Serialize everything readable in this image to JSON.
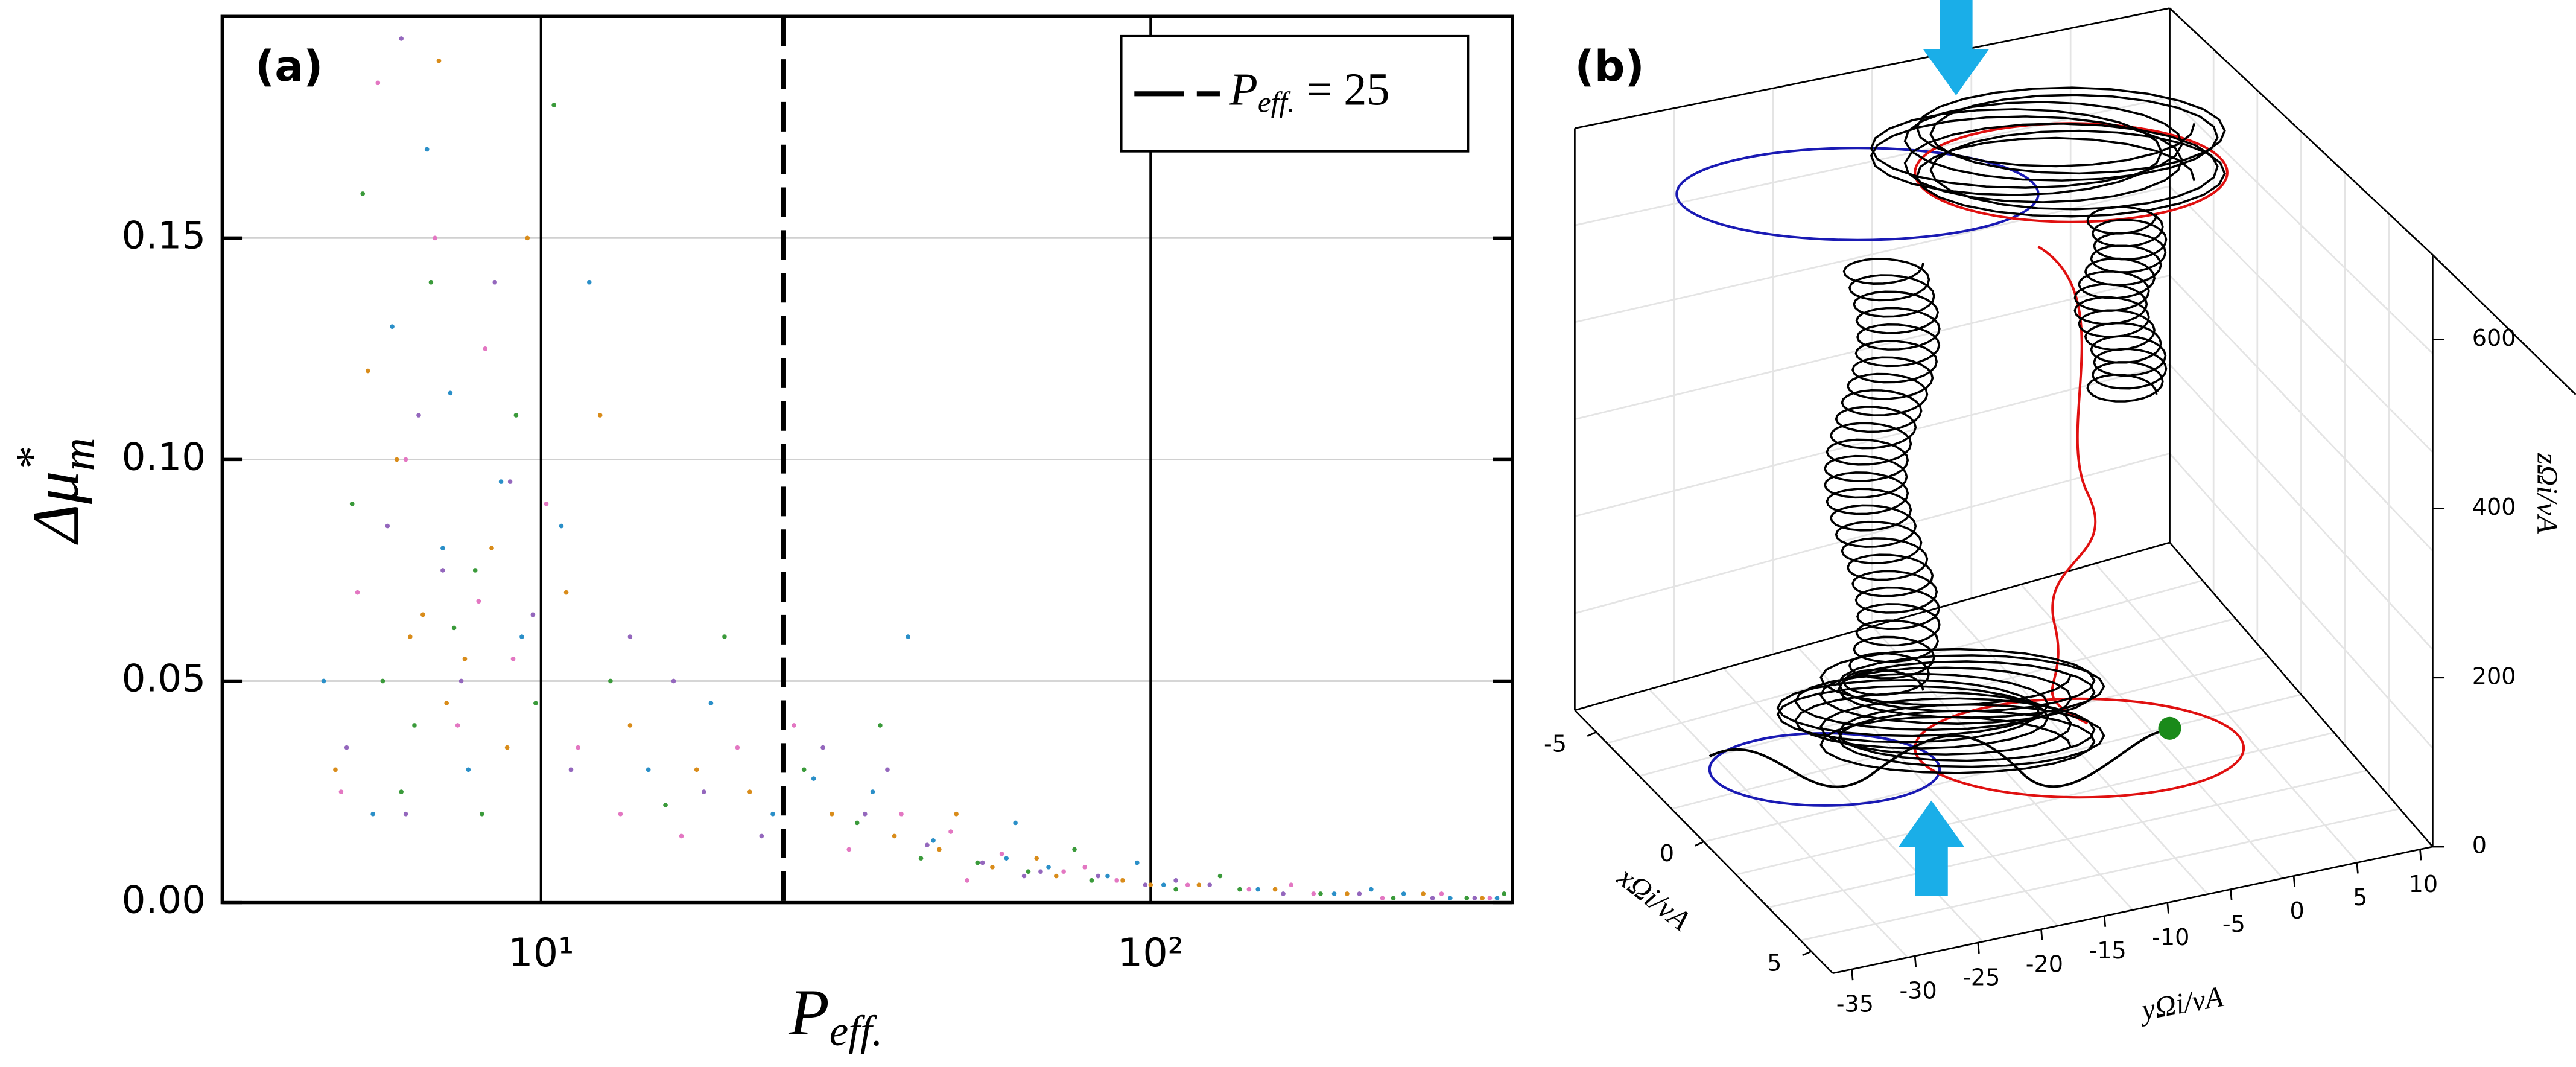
{
  "chart_data": [
    {
      "type": "scatter",
      "panel_label": "(a)",
      "xlabel": {
        "base": "P",
        "sub": "eff."
      },
      "ylabel": {
        "base": "Δμ",
        "sup": "*",
        "sub": "m"
      },
      "xscale": "log",
      "xlim": [
        3,
        392
      ],
      "ylim": [
        0,
        0.2
      ],
      "xticks": [
        {
          "value": 10,
          "label": "10¹"
        },
        {
          "value": 100,
          "label": "10²"
        }
      ],
      "yticks": [
        {
          "value": 0,
          "label": "0.00"
        },
        {
          "value": 0.05,
          "label": "0.05"
        },
        {
          "value": 0.1,
          "label": "0.10"
        },
        {
          "value": 0.15,
          "label": "0.15"
        }
      ],
      "grid": true,
      "legend": "upper right",
      "vline": {
        "x": 25,
        "color": "#000000",
        "legend": {
          "base": "P",
          "sub": "eff.",
          "rest": " = 25"
        }
      },
      "series": [
        {
          "color": "#d98c1a",
          "x": [
            5.2,
            6.1,
            7.0,
            8.3,
            9.5,
            4.6,
            6.8,
            7.5,
            5.8,
            11,
            14,
            18,
            22,
            30,
            38,
            45,
            55,
            70,
            90,
            120,
            160,
            210,
            280,
            350,
            8.8,
            6.4,
            12.5,
            48,
            65,
            100
          ],
          "values": [
            0.12,
            0.06,
            0.045,
            0.08,
            0.15,
            0.03,
            0.19,
            0.055,
            0.1,
            0.07,
            0.04,
            0.03,
            0.025,
            0.02,
            0.015,
            0.012,
            0.008,
            0.006,
            0.005,
            0.004,
            0.003,
            0.002,
            0.002,
            0.001,
            0.035,
            0.065,
            0.11,
            0.02,
            0.01,
            0.004
          ]
        },
        {
          "color": "#3a9a3a",
          "x": [
            4.9,
            5.5,
            6.6,
            7.2,
            8.0,
            9.1,
            10.5,
            5.1,
            6.2,
            7.8,
            13,
            16,
            20,
            27,
            33,
            42,
            52,
            63,
            80,
            110,
            140,
            190,
            250,
            330,
            380,
            9.8,
            5.9,
            36,
            75,
            130
          ],
          "values": [
            0.09,
            0.05,
            0.14,
            0.062,
            0.02,
            0.11,
            0.18,
            0.16,
            0.04,
            0.075,
            0.05,
            0.022,
            0.06,
            0.03,
            0.018,
            0.01,
            0.009,
            0.007,
            0.005,
            0.003,
            0.003,
            0.002,
            0.001,
            0.001,
            0.002,
            0.045,
            0.025,
            0.04,
            0.012,
            0.006
          ]
        },
        {
          "color": "#2a8fc8",
          "x": [
            4.4,
            5.7,
            6.9,
            7.6,
            8.6,
            9.3,
            12,
            5.3,
            6.5,
            15,
            19,
            24,
            28,
            35,
            44,
            58,
            68,
            85,
            105,
            150,
            200,
            260,
            310,
            370,
            7.1,
            10.8,
            40,
            60,
            95,
            230
          ],
          "values": [
            0.05,
            0.13,
            0.08,
            0.03,
            0.095,
            0.06,
            0.14,
            0.02,
            0.17,
            0.03,
            0.045,
            0.02,
            0.028,
            0.025,
            0.014,
            0.01,
            0.008,
            0.006,
            0.004,
            0.003,
            0.002,
            0.002,
            0.001,
            0.001,
            0.115,
            0.085,
            0.06,
            0.018,
            0.009,
            0.003
          ]
        },
        {
          "color": "#e377c2",
          "x": [
            5.0,
            6.0,
            7.3,
            8.1,
            9.0,
            10.2,
            4.7,
            6.7,
            11.5,
            17,
            21,
            26,
            32,
            39,
            47,
            57,
            72,
            88,
            115,
            145,
            185,
            240,
            300,
            360,
            5.4,
            7.9,
            13.5,
            50,
            78,
            170
          ],
          "values": [
            0.07,
            0.1,
            0.04,
            0.125,
            0.055,
            0.09,
            0.025,
            0.15,
            0.035,
            0.015,
            0.035,
            0.04,
            0.012,
            0.02,
            0.016,
            0.011,
            0.007,
            0.005,
            0.004,
            0.003,
            0.002,
            0.001,
            0.002,
            0.001,
            0.185,
            0.068,
            0.02,
            0.005,
            0.008,
            0.004
          ]
        },
        {
          "color": "#9467bd",
          "x": [
            4.8,
            5.6,
            6.3,
            7.4,
            8.4,
            9.7,
            11.2,
            5.9,
            6.9,
            14,
            18.5,
            23,
            29,
            34,
            43,
            53,
            66,
            82,
            98,
            125,
            165,
            220,
            290,
            340,
            8.9,
            6.0,
            16.5,
            37,
            62,
            110
          ],
          "values": [
            0.035,
            0.085,
            0.11,
            0.05,
            0.14,
            0.065,
            0.03,
            0.195,
            0.075,
            0.06,
            0.025,
            0.015,
            0.035,
            0.02,
            0.013,
            0.009,
            0.007,
            0.006,
            0.004,
            0.004,
            0.002,
            0.002,
            0.001,
            0.001,
            0.095,
            0.02,
            0.05,
            0.03,
            0.006,
            0.005
          ]
        }
      ]
    },
    {
      "type": "line3d",
      "panel_label": "(b)",
      "xlabel": "xΩi/vA",
      "ylabel": "yΩi/vA",
      "zlabel": "zΩi/vA",
      "xlim": [
        -6,
        6
      ],
      "ylim": [
        -36.5,
        11
      ],
      "zlim": [
        0,
        700
      ],
      "xticks": [
        -5,
        0,
        5
      ],
      "yticks": [
        -35,
        -30,
        -25,
        -20,
        -15,
        -10,
        -5,
        0,
        5,
        10
      ],
      "zticks": [
        0,
        200,
        400,
        600
      ]
    }
  ]
}
